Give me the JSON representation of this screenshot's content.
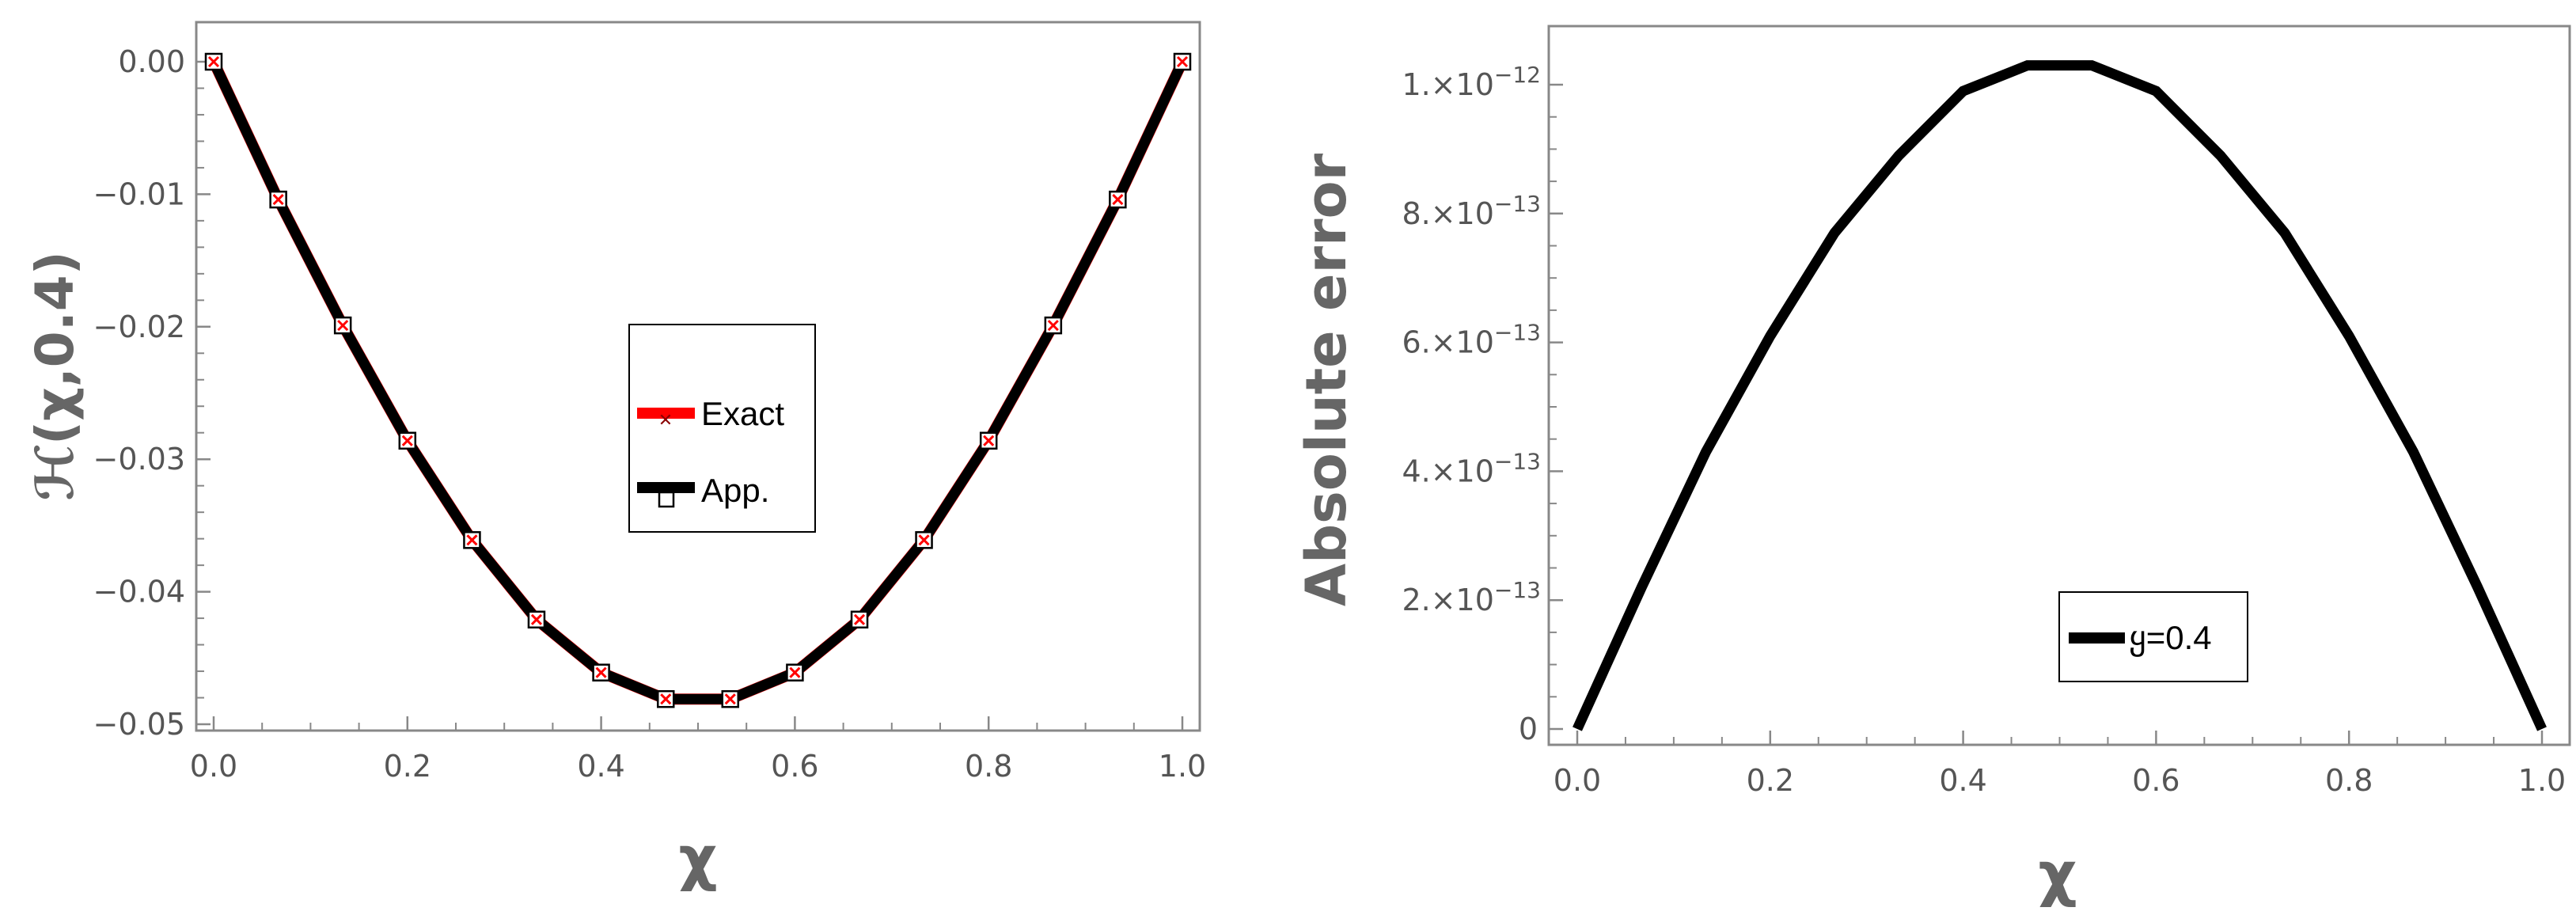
{
  "chart_data": [
    {
      "type": "line",
      "xlabel": "χ",
      "ylabel": "ℋ(χ,0.4)",
      "xlim": [
        0,
        1
      ],
      "ylim": [
        -0.05,
        0.0015
      ],
      "grid": false,
      "legend_position": "center-right",
      "x_ticks": [
        "0.0",
        "0.2",
        "0.4",
        "0.6",
        "0.8",
        "1.0"
      ],
      "y_ticks": [
        "0.00",
        "−0.01",
        "−0.02",
        "−0.03",
        "−0.04",
        "−0.05"
      ],
      "x": [
        0,
        0.0667,
        0.1333,
        0.2,
        0.2667,
        0.3333,
        0.4,
        0.4667,
        0.5333,
        0.6,
        0.6667,
        0.7333,
        0.8,
        0.8667,
        0.9333,
        1.0
      ],
      "series": [
        {
          "name": "Exact",
          "color": "#ff0000",
          "marker": "x",
          "values": [
            0,
            -0.0104,
            -0.0199,
            -0.0286,
            -0.0361,
            -0.0421,
            -0.0461,
            -0.0481,
            -0.0481,
            -0.0461,
            -0.0421,
            -0.0361,
            -0.0286,
            -0.0199,
            -0.0104,
            0
          ]
        },
        {
          "name": "App.",
          "color": "#000000",
          "marker": "square",
          "values": [
            0,
            -0.0104,
            -0.0199,
            -0.0286,
            -0.0361,
            -0.0421,
            -0.0461,
            -0.0481,
            -0.0481,
            -0.0461,
            -0.0421,
            -0.0361,
            -0.0286,
            -0.0199,
            -0.0104,
            0
          ]
        }
      ]
    },
    {
      "type": "line",
      "xlabel": "χ",
      "ylabel": "Absolute error",
      "xlim": [
        0,
        1
      ],
      "ylim": [
        0,
        1.09e-12
      ],
      "grid": false,
      "legend_position": "bottom-center",
      "x_ticks": [
        "0.0",
        "0.2",
        "0.4",
        "0.6",
        "0.8",
        "1.0"
      ],
      "y_ticks": [
        {
          "value": 0,
          "mant": "0",
          "exp": ""
        },
        {
          "value": 2e-13,
          "mant": "2.×10",
          "exp": "−13"
        },
        {
          "value": 4e-13,
          "mant": "4.×10",
          "exp": "−13"
        },
        {
          "value": 6e-13,
          "mant": "6.×10",
          "exp": "−13"
        },
        {
          "value": 8e-13,
          "mant": "8.×10",
          "exp": "−13"
        },
        {
          "value": 1e-12,
          "mant": "1.×10",
          "exp": "−12"
        }
      ],
      "x": [
        0,
        0.0667,
        0.1333,
        0.2,
        0.2667,
        0.3333,
        0.4,
        0.4667,
        0.5333,
        0.6,
        0.6667,
        0.7333,
        0.8,
        0.8667,
        0.9333,
        1.0
      ],
      "series": [
        {
          "name": "ყ=0.4",
          "color": "#000000",
          "values": [
            0,
            2.2e-13,
            4.3e-13,
            6.1e-13,
            7.7e-13,
            8.9e-13,
            9.9e-13,
            1.03e-12,
            1.03e-12,
            9.9e-13,
            8.9e-13,
            7.7e-13,
            6.1e-13,
            4.3e-13,
            2.2e-13,
            0
          ]
        }
      ]
    }
  ]
}
